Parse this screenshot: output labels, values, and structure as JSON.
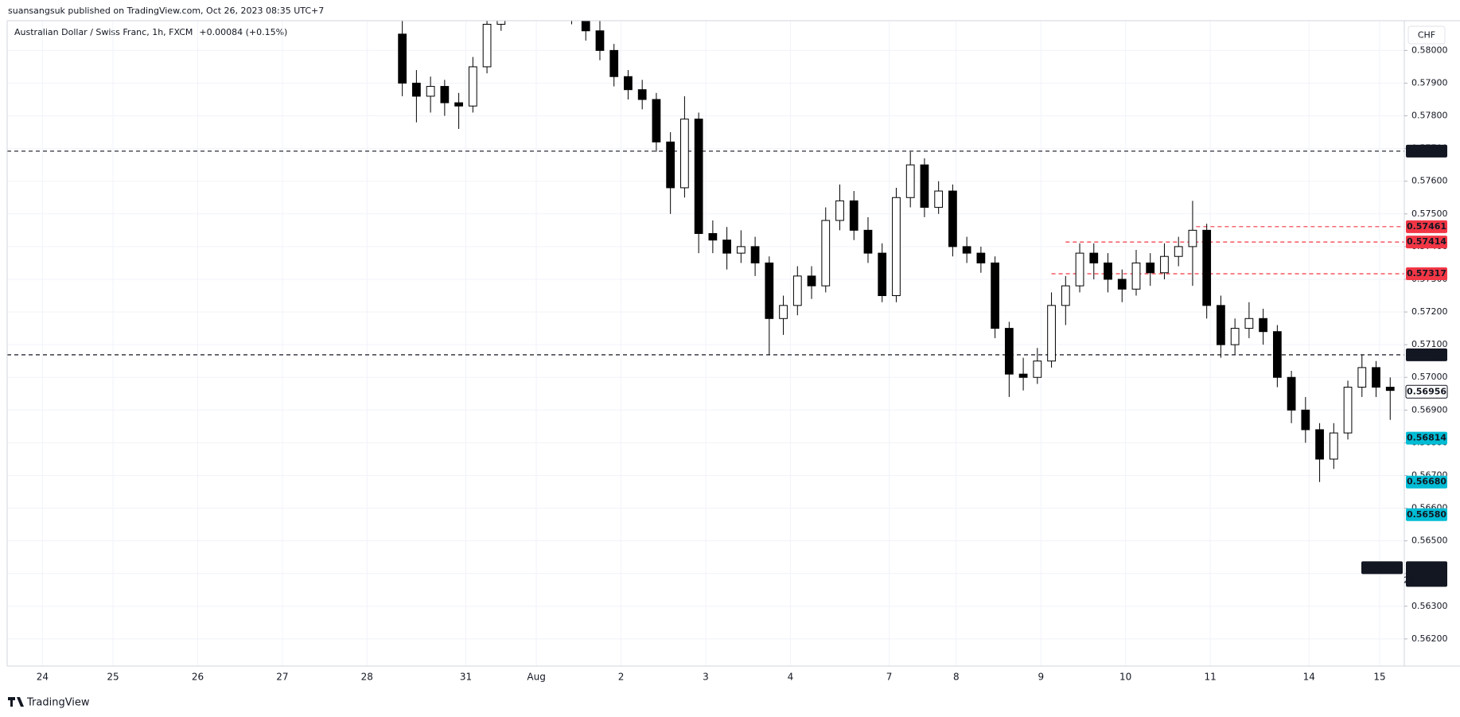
{
  "chart_data": {
    "type": "candlestick",
    "attribution": "suansangsuk published on TradingView.com, Oct 26, 2023 08:35 UTC+7",
    "title": "Australian Dollar / Swiss Franc, 1h, FXCM",
    "change": "+0.00084 (+0.15%)",
    "currency_button": "CHF",
    "footer": "TradingView",
    "xlim": [
      0,
      396
    ],
    "xticks": [
      {
        "value": 10,
        "label": "24"
      },
      {
        "value": 30,
        "label": "25"
      },
      {
        "value": 54,
        "label": "26"
      },
      {
        "value": 78,
        "label": "27"
      },
      {
        "value": 102,
        "label": "28"
      },
      {
        "value": 130,
        "label": "31"
      },
      {
        "value": 150,
        "label": "Aug"
      },
      {
        "value": 174,
        "label": "2"
      },
      {
        "value": 198,
        "label": "3"
      },
      {
        "value": 222,
        "label": "4"
      },
      {
        "value": 250,
        "label": "7"
      },
      {
        "value": 269,
        "label": "8"
      },
      {
        "value": 293,
        "label": "9"
      },
      {
        "value": 317,
        "label": "10"
      },
      {
        "value": 341,
        "label": "11"
      },
      {
        "value": 369,
        "label": "14"
      },
      {
        "value": 389,
        "label": "15"
      }
    ],
    "ylim": [
      0.56117,
      0.58091
    ],
    "yticks": [
      {
        "value": 0.562,
        "label": "0.56200"
      },
      {
        "value": 0.563,
        "label": "0.56300"
      },
      {
        "value": 0.564,
        "label": "0.56400"
      },
      {
        "value": 0.565,
        "label": "0.56500"
      },
      {
        "value": 0.566,
        "label": "0.56600"
      },
      {
        "value": 0.567,
        "label": "0.56700"
      },
      {
        "value": 0.568,
        "label": "0.56800"
      },
      {
        "value": 0.569,
        "label": "0.56900"
      },
      {
        "value": 0.57,
        "label": "0.57000"
      },
      {
        "value": 0.571,
        "label": "0.57100"
      },
      {
        "value": 0.572,
        "label": "0.57200"
      },
      {
        "value": 0.573,
        "label": "0.57300"
      },
      {
        "value": 0.574,
        "label": "0.57400"
      },
      {
        "value": 0.575,
        "label": "0.57500"
      },
      {
        "value": 0.576,
        "label": "0.57600"
      },
      {
        "value": 0.577,
        "label": "0.57700"
      },
      {
        "value": 0.578,
        "label": "0.57800"
      },
      {
        "value": 0.579,
        "label": "0.57900"
      },
      {
        "value": 0.58,
        "label": "0.58000"
      }
    ],
    "grid": true,
    "x": [
      112,
      116,
      120,
      124,
      128,
      132,
      136,
      140,
      144,
      148,
      152,
      156,
      160,
      164,
      168,
      172,
      176,
      180,
      184,
      188,
      192,
      196,
      200,
      204,
      208,
      212,
      216,
      220,
      224,
      228,
      232,
      236,
      240,
      244,
      248,
      252,
      256,
      260,
      264,
      268,
      272,
      276,
      280,
      284,
      288,
      292,
      296,
      300,
      304,
      308,
      312,
      316,
      320,
      324,
      328,
      332,
      336,
      340,
      344,
      348,
      352,
      356,
      360,
      364,
      368,
      372,
      376,
      380,
      384,
      388,
      392
    ],
    "open": [
      0.5805,
      0.579,
      0.5786,
      0.5789,
      0.5784,
      0.5783,
      0.5795,
      0.5808,
      0.5815,
      0.5818,
      0.5816,
      0.5814,
      0.5813,
      0.5811,
      0.5806,
      0.58,
      0.5792,
      0.5788,
      0.5785,
      0.5772,
      0.5758,
      0.5779,
      0.5744,
      0.5742,
      0.5738,
      0.574,
      0.5735,
      0.5718,
      0.5722,
      0.5731,
      0.5728,
      0.5748,
      0.5754,
      0.5745,
      0.5738,
      0.5725,
      0.5755,
      0.5765,
      0.5752,
      0.5757,
      0.574,
      0.5738,
      0.5735,
      0.5715,
      0.5701,
      0.57,
      0.5705,
      0.5722,
      0.5728,
      0.5738,
      0.5735,
      0.573,
      0.5727,
      0.5735,
      0.5732,
      0.5737,
      0.574,
      0.5745,
      0.5722,
      0.571,
      0.5715,
      0.5718,
      0.5714,
      0.57,
      0.569,
      0.5684,
      0.5675,
      0.5683,
      0.5697,
      0.5703,
      0.5697
    ],
    "high": [
      0.5812,
      0.5794,
      0.5792,
      0.5791,
      0.5787,
      0.5798,
      0.5812,
      0.5818,
      0.5822,
      0.5821,
      0.5819,
      0.5817,
      0.5815,
      0.5813,
      0.5809,
      0.5802,
      0.5794,
      0.5791,
      0.5787,
      0.5775,
      0.5786,
      0.5781,
      0.5748,
      0.5746,
      0.5745,
      0.5743,
      0.5737,
      0.5725,
      0.5734,
      0.5734,
      0.5752,
      0.5759,
      0.5757,
      0.5749,
      0.5741,
      0.5758,
      0.5769,
      0.5767,
      0.576,
      0.5759,
      0.5743,
      0.574,
      0.5737,
      0.5717,
      0.5706,
      0.5709,
      0.5726,
      0.5731,
      0.5741,
      0.5741,
      0.5738,
      0.5733,
      0.5739,
      0.5738,
      0.5741,
      0.5743,
      0.5754,
      0.5747,
      0.5725,
      0.5718,
      0.5723,
      0.5721,
      0.5716,
      0.5702,
      0.5694,
      0.5686,
      0.5686,
      0.5699,
      0.5707,
      0.5705,
      0.57
    ],
    "low": [
      0.5786,
      0.5778,
      0.5781,
      0.578,
      0.5776,
      0.5781,
      0.5793,
      0.5806,
      0.5812,
      0.5813,
      0.5811,
      0.581,
      0.5808,
      0.5803,
      0.5797,
      0.5789,
      0.5785,
      0.5782,
      0.5769,
      0.575,
      0.5755,
      0.5738,
      0.5738,
      0.5733,
      0.5735,
      0.5731,
      0.5707,
      0.5713,
      0.5719,
      0.5724,
      0.5726,
      0.5745,
      0.5742,
      0.5735,
      0.5723,
      0.5723,
      0.5752,
      0.5749,
      0.575,
      0.5737,
      0.5735,
      0.5732,
      0.5712,
      0.5694,
      0.5696,
      0.5698,
      0.5703,
      0.5716,
      0.5726,
      0.573,
      0.5726,
      0.5723,
      0.5725,
      0.5728,
      0.573,
      0.5734,
      0.5728,
      0.5718,
      0.5706,
      0.5707,
      0.5712,
      0.571,
      0.5697,
      0.5686,
      0.568,
      0.5668,
      0.5672,
      0.5681,
      0.5694,
      0.5694,
      0.5687
    ],
    "close": [
      0.579,
      0.5786,
      0.5789,
      0.5784,
      0.5783,
      0.5795,
      0.5808,
      0.5815,
      0.5818,
      0.5816,
      0.5814,
      0.5813,
      0.5811,
      0.5806,
      0.58,
      0.5792,
      0.5788,
      0.5785,
      0.5772,
      0.5758,
      0.5779,
      0.5744,
      0.5742,
      0.5738,
      0.574,
      0.5735,
      0.5718,
      0.5722,
      0.5731,
      0.5728,
      0.5748,
      0.5754,
      0.5745,
      0.5738,
      0.5725,
      0.5755,
      0.5765,
      0.5752,
      0.5757,
      0.574,
      0.5738,
      0.5735,
      0.5715,
      0.5701,
      0.57,
      0.5705,
      0.5722,
      0.5728,
      0.5738,
      0.5735,
      0.573,
      0.5727,
      0.5735,
      0.5732,
      0.5737,
      0.574,
      0.5745,
      0.5722,
      0.571,
      0.5715,
      0.5718,
      0.5714,
      0.57,
      0.569,
      0.5684,
      0.5675,
      0.5683,
      0.5697,
      0.5703,
      0.5697,
      0.5696
    ],
    "up_color": "#ffffff",
    "down_color": "#000000",
    "price_tags": [
      {
        "value": 0.57692,
        "color": "#131722",
        "line_from": 0
      },
      {
        "value": 0.57461,
        "color": "#f23645",
        "line_from": 337
      },
      {
        "value": 0.57414,
        "color": "#f23645",
        "line_from": 300
      },
      {
        "value": 0.57317,
        "color": "#f23645",
        "line_from": 296
      },
      {
        "value": 0.57069,
        "color": "#131722",
        "line_from": 0
      },
      {
        "value": 0.56956,
        "color": "#ffffff"
      },
      {
        "value": 0.56814,
        "color": "#00bcd4"
      },
      {
        "value": 0.5668,
        "label": "0.56680",
        "color": "#00bcd4"
      },
      {
        "value": 0.5658,
        "label": "0.56580",
        "color": "#00bcd4"
      },
      {
        "value": 0.56418,
        "name": "AUDCHF",
        "sub": "24:01",
        "color": "#131722"
      }
    ]
  }
}
